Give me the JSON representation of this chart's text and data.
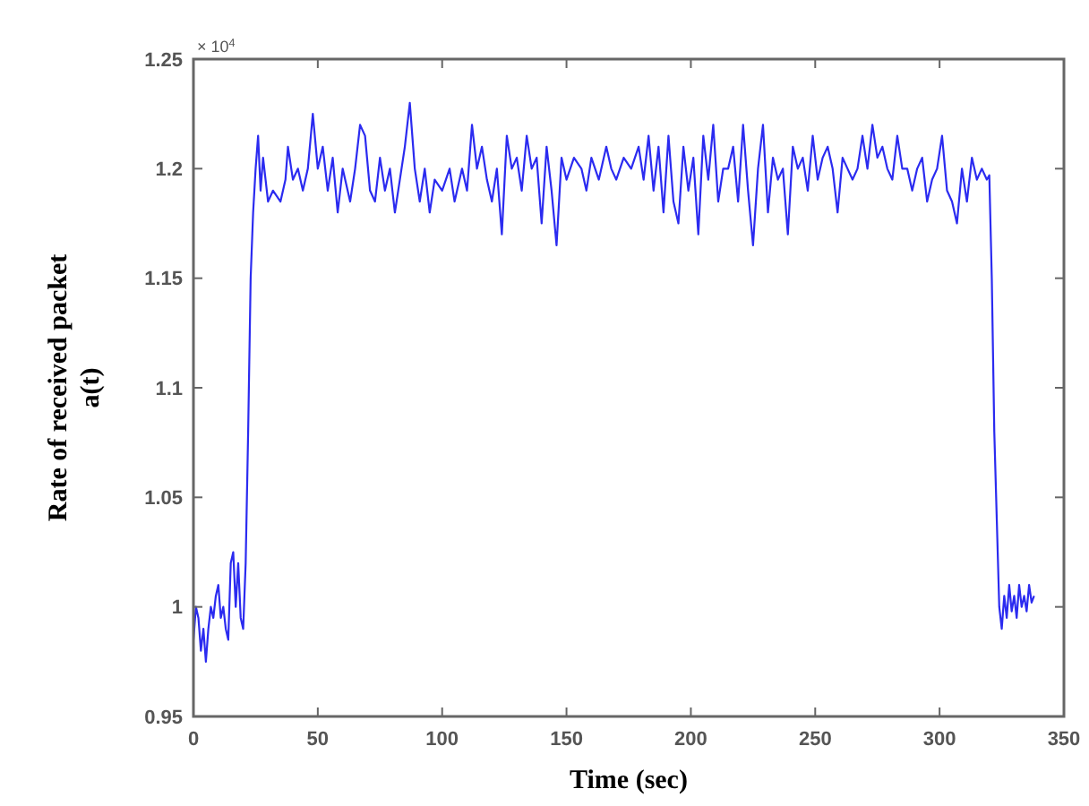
{
  "chart_data": {
    "type": "line",
    "xlabel": "Time (sec)",
    "ylabel": "Rate of received packet\na(t)",
    "annotations": [
      "× 10$^{4}$"
    ],
    "xlim": [
      0,
      350
    ],
    "xticks": [
      0,
      50,
      100,
      150,
      200,
      250,
      300,
      350
    ],
    "ylim": [
      0.95,
      1.25
    ],
    "yticks": [
      0.95,
      1,
      1.05,
      1.1,
      1.15,
      1.2,
      1.25
    ],
    "line_style": "solid",
    "series": [
      {
        "color": "#2b2bf0",
        "x": [
          0,
          1,
          2,
          3,
          4,
          5,
          6,
          7,
          8,
          9,
          10,
          11,
          12,
          13,
          14,
          15,
          16,
          17,
          18,
          19,
          20,
          21,
          22,
          23,
          24,
          25,
          26,
          27,
          28,
          29,
          30,
          32,
          35,
          37,
          38,
          40,
          42,
          44,
          46,
          48,
          50,
          52,
          54,
          56,
          58,
          60,
          63,
          65,
          67,
          69,
          71,
          73,
          75,
          77,
          79,
          81,
          83,
          85,
          87,
          89,
          91,
          93,
          95,
          97,
          100,
          103,
          105,
          108,
          110,
          112,
          114,
          116,
          118,
          120,
          122,
          124,
          126,
          128,
          130,
          132,
          134,
          136,
          138,
          140,
          142,
          144,
          146,
          148,
          150,
          153,
          156,
          158,
          160,
          163,
          166,
          168,
          170,
          173,
          176,
          179,
          181,
          183,
          185,
          187,
          189,
          191,
          193,
          195,
          197,
          199,
          201,
          203,
          205,
          207,
          209,
          211,
          213,
          215,
          217,
          219,
          221,
          223,
          225,
          227,
          229,
          231,
          233,
          235,
          237,
          239,
          241,
          243,
          245,
          247,
          249,
          251,
          253,
          255,
          257,
          259,
          261,
          263,
          265,
          267,
          269,
          271,
          273,
          275,
          277,
          279,
          281,
          283,
          285,
          287,
          289,
          291,
          293,
          295,
          297,
          299,
          301,
          303,
          305,
          307,
          309,
          311,
          313,
          315,
          317,
          319,
          320,
          321,
          322,
          323,
          324,
          325,
          326,
          327,
          328,
          329,
          330,
          331,
          332,
          333,
          334,
          335,
          336,
          337,
          338
        ],
        "values": [
          0.985,
          1.0,
          0.995,
          0.98,
          0.99,
          0.975,
          0.99,
          1.0,
          0.995,
          1.005,
          1.01,
          0.995,
          1.0,
          0.99,
          0.985,
          1.02,
          1.025,
          1.0,
          1.02,
          0.995,
          0.99,
          1.02,
          1.08,
          1.15,
          1.18,
          1.2,
          1.215,
          1.19,
          1.205,
          1.195,
          1.185,
          1.19,
          1.185,
          1.195,
          1.21,
          1.195,
          1.2,
          1.19,
          1.2,
          1.225,
          1.2,
          1.21,
          1.19,
          1.205,
          1.18,
          1.2,
          1.185,
          1.2,
          1.22,
          1.215,
          1.19,
          1.185,
          1.205,
          1.19,
          1.2,
          1.18,
          1.195,
          1.21,
          1.23,
          1.2,
          1.185,
          1.2,
          1.18,
          1.195,
          1.19,
          1.2,
          1.185,
          1.2,
          1.19,
          1.22,
          1.2,
          1.21,
          1.195,
          1.185,
          1.2,
          1.17,
          1.215,
          1.2,
          1.205,
          1.19,
          1.215,
          1.2,
          1.205,
          1.175,
          1.21,
          1.19,
          1.165,
          1.205,
          1.195,
          1.205,
          1.2,
          1.19,
          1.205,
          1.195,
          1.21,
          1.2,
          1.195,
          1.205,
          1.2,
          1.21,
          1.195,
          1.215,
          1.19,
          1.21,
          1.18,
          1.215,
          1.185,
          1.175,
          1.21,
          1.19,
          1.205,
          1.17,
          1.215,
          1.195,
          1.22,
          1.185,
          1.2,
          1.2,
          1.21,
          1.185,
          1.22,
          1.19,
          1.165,
          1.2,
          1.22,
          1.18,
          1.205,
          1.195,
          1.2,
          1.17,
          1.21,
          1.2,
          1.205,
          1.19,
          1.215,
          1.195,
          1.205,
          1.21,
          1.2,
          1.18,
          1.205,
          1.2,
          1.195,
          1.2,
          1.215,
          1.2,
          1.22,
          1.205,
          1.21,
          1.2,
          1.195,
          1.215,
          1.2,
          1.2,
          1.19,
          1.2,
          1.205,
          1.185,
          1.195,
          1.2,
          1.215,
          1.19,
          1.185,
          1.175,
          1.2,
          1.185,
          1.205,
          1.195,
          1.2,
          1.195,
          1.197,
          1.15,
          1.08,
          1.04,
          1.0,
          0.99,
          1.005,
          0.995,
          1.01,
          0.998,
          1.005,
          0.995,
          1.01,
          1.0,
          1.005,
          0.998,
          1.01,
          1.002,
          1.005
        ]
      }
    ]
  }
}
